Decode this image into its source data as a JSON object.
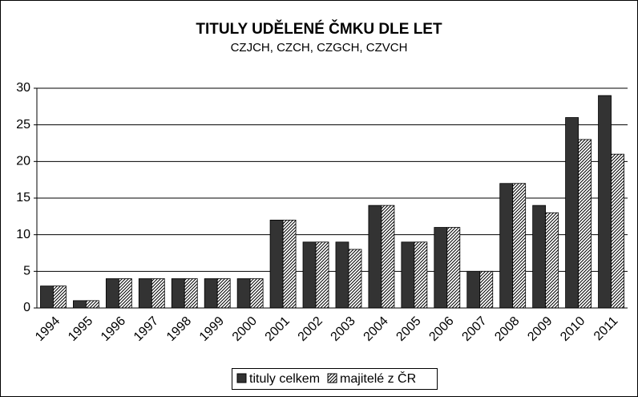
{
  "chart_data": {
    "type": "bar",
    "title": "TITULY UDĚLENÉ ČMKU DLE LET",
    "subtitle": "CZJCH, CZCH, CZGCH, CZVCH",
    "categories": [
      "1994",
      "1995",
      "1996",
      "1997",
      "1998",
      "1999",
      "2000",
      "2001",
      "2002",
      "2003",
      "2004",
      "2005",
      "2006",
      "2007",
      "2008",
      "2009",
      "2010",
      "2011"
    ],
    "series": [
      {
        "name": "tituly celkem",
        "color": "#333333",
        "fill": "solid",
        "values": [
          3,
          1,
          4,
          4,
          4,
          4,
          4,
          12,
          9,
          9,
          14,
          9,
          11,
          5,
          17,
          14,
          26,
          29
        ]
      },
      {
        "name": "majitelé z ČR",
        "color": "#333333",
        "fill": "hatch",
        "values": [
          3,
          1,
          4,
          4,
          4,
          4,
          4,
          12,
          9,
          8,
          14,
          9,
          11,
          5,
          17,
          13,
          23,
          21
        ]
      }
    ],
    "ylim": [
      0,
      30
    ],
    "yticks": [
      0,
      5,
      10,
      15,
      20,
      25,
      30
    ],
    "grid": true,
    "legend": "bottom"
  }
}
